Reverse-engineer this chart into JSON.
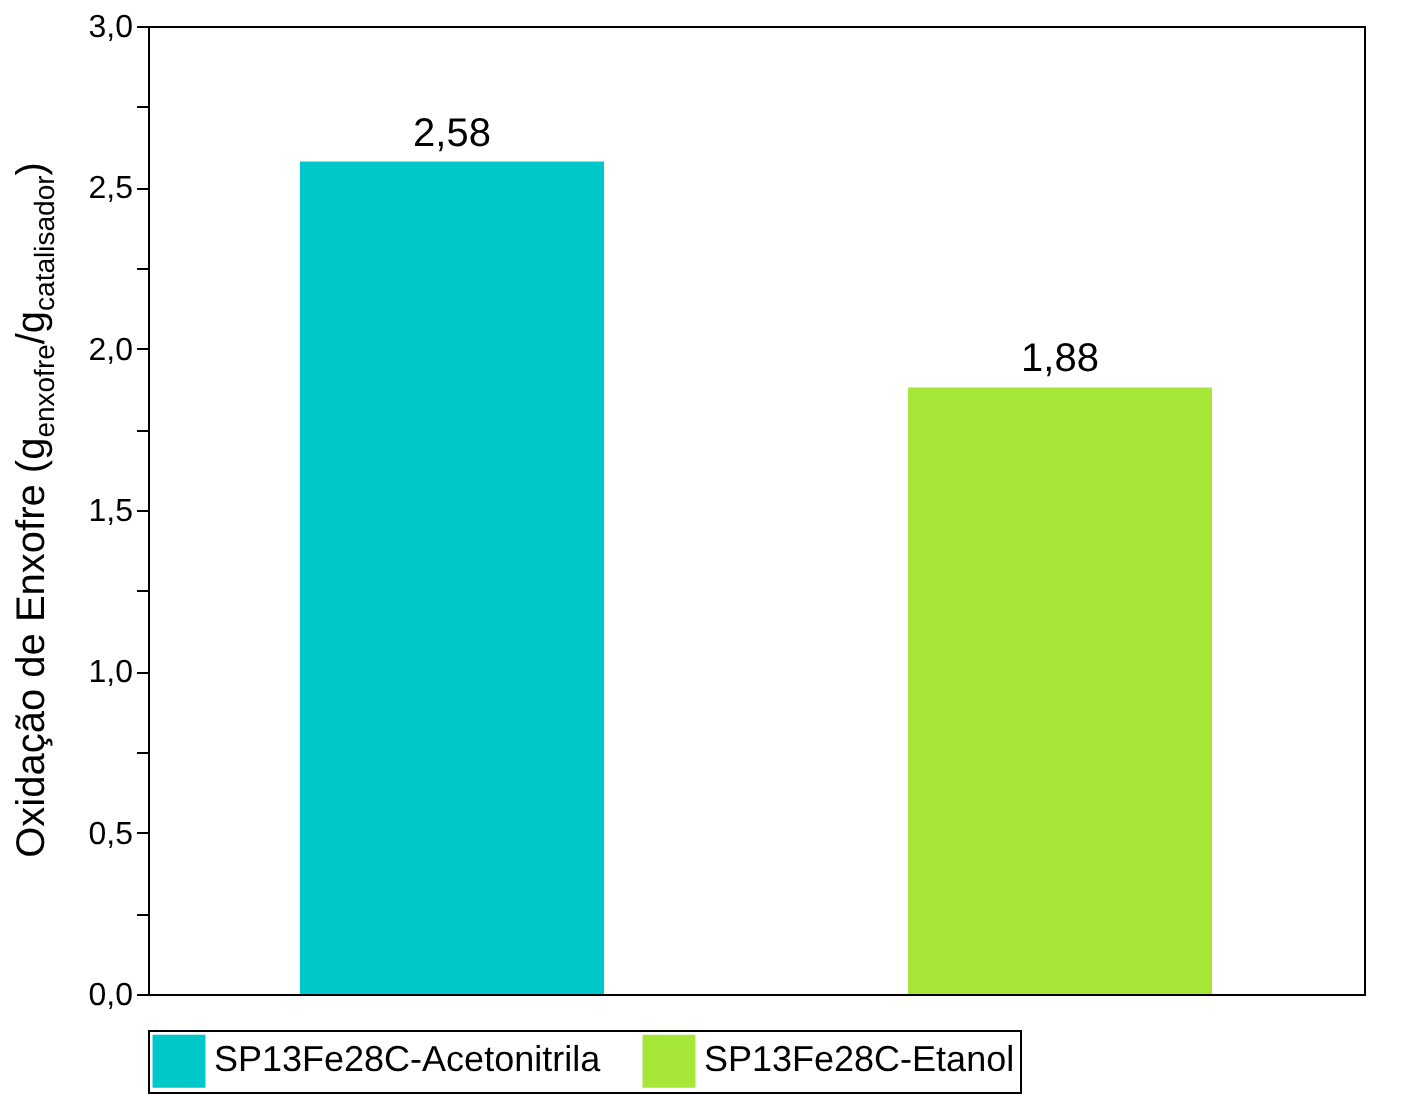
{
  "chart_data": {
    "type": "bar",
    "ylabel": "Oxidação de Enxofre (g$_{enxofre}$/g$_{catalisador}$)",
    "categories": [
      null,
      null
    ],
    "stacked": true,
    "series": [
      {
        "name": "SP13Fe28C-Acetonitrila",
        "color": "#00c8c8",
        "values": [
          2.58,
          null
        ],
        "value_labels": [
          "2,58",
          null
        ]
      },
      {
        "name": "SP13Fe28C-Etanol",
        "color": "#a6e639",
        "values": [
          null,
          1.88
        ],
        "value_labels": [
          null,
          "1,88"
        ]
      }
    ],
    "ylim": [
      0,
      3
    ],
    "yticks": [
      {
        "value": 0,
        "label": "0,0"
      },
      {
        "value": 0.25,
        "label": null
      },
      {
        "value": 0.5,
        "label": "0,5"
      },
      {
        "value": 0.75,
        "label": null
      },
      {
        "value": 1,
        "label": "1,0"
      },
      {
        "value": 1.25,
        "label": null
      },
      {
        "value": 1.5,
        "label": "1,5"
      },
      {
        "value": 1.75,
        "label": null
      },
      {
        "value": 2,
        "label": "2,0"
      },
      {
        "value": 2.25,
        "label": null
      },
      {
        "value": 2.5,
        "label": "2,5"
      },
      {
        "value": 2.75,
        "label": null
      },
      {
        "value": 3,
        "label": "3,0"
      }
    ],
    "tick_labels": "y",
    "legend": "bottom",
    "grid": false
  }
}
